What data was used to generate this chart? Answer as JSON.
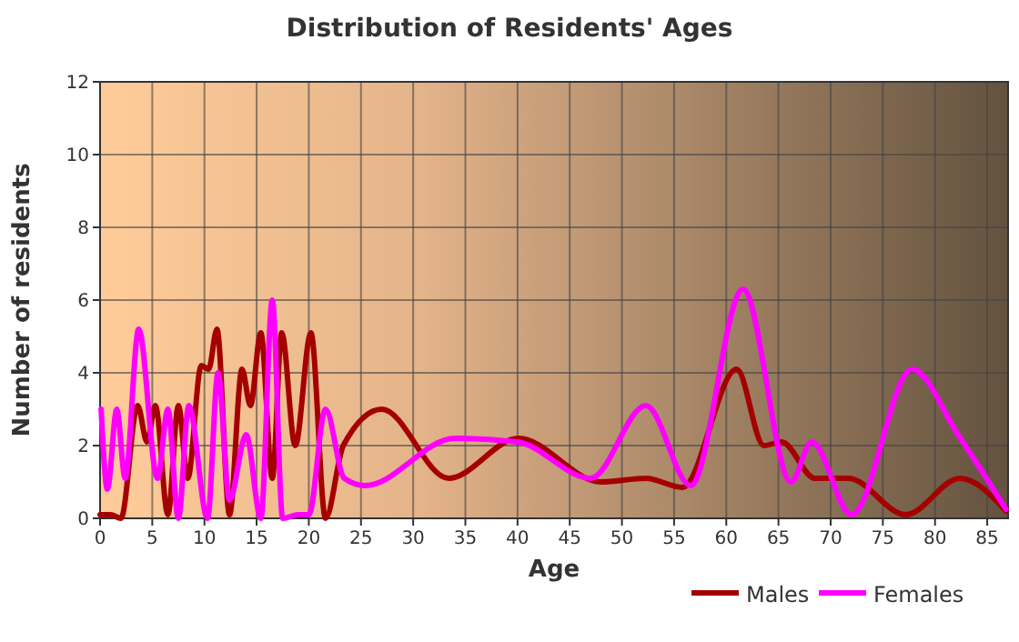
{
  "chart_data": {
    "type": "line",
    "title": "Distribution of Residents' Ages",
    "xlabel": "Age",
    "ylabel": "Number of residents",
    "xlim": [
      0,
      87
    ],
    "xticks": [
      0,
      5,
      10,
      15,
      20,
      25,
      30,
      35,
      40,
      45,
      50,
      55,
      60,
      65,
      70,
      75,
      80,
      85
    ],
    "ylim": [
      0,
      12
    ],
    "yticks": [
      0,
      2,
      4,
      6,
      8,
      10,
      12
    ],
    "grid": true,
    "legend": "bottom right",
    "marker": "none",
    "line_style": "solid",
    "series": [
      {
        "name": "Males",
        "color": "#a50000",
        "x": [
          0,
          1,
          2,
          3.6,
          4.5,
          5.3,
          6.5,
          7.5,
          8.4,
          9.7,
          10.4,
          11.2,
          12.4,
          13.6,
          14.4,
          15.4,
          16.5,
          17.4,
          18.7,
          20.2,
          21.6,
          23.3,
          27,
          33.4,
          40.1,
          48,
          52.3,
          55.8,
          61,
          63.6,
          65.3,
          68.5,
          71.7,
          77.2,
          82.4,
          86.8
        ],
        "values": [
          0.1,
          0.1,
          0,
          3.1,
          2.1,
          3.1,
          0.1,
          3.1,
          1.1,
          4.2,
          4.1,
          5.2,
          0.1,
          4.1,
          3.1,
          5.1,
          1.1,
          5.1,
          2,
          5.1,
          0,
          2,
          3,
          1.1,
          2.2,
          1,
          1.1,
          0.85,
          4.1,
          2,
          2.1,
          1.1,
          1.1,
          0.1,
          1.1,
          0.2
        ]
      },
      {
        "name": "Females",
        "color": "#ff00ff",
        "x": [
          0.1,
          0.7,
          1.6,
          2.4,
          3.7,
          5.5,
          6.5,
          7.5,
          8.5,
          10.3,
          11.3,
          12.4,
          14,
          15.4,
          16.5,
          17.5,
          19,
          20,
          21.6,
          23.4,
          25.4,
          34,
          40,
          47,
          52.3,
          56.6,
          61.6,
          66.2,
          68.2,
          72,
          77.8,
          82.2,
          86.8
        ],
        "values": [
          3,
          0.8,
          3,
          1.1,
          5.2,
          1.1,
          3,
          0,
          3.1,
          0,
          4,
          0.5,
          2.3,
          0,
          6,
          0,
          0.1,
          0.1,
          3,
          1.1,
          0.9,
          2.2,
          2.1,
          1.1,
          3.1,
          0.9,
          6.3,
          1,
          2.1,
          0.1,
          4.1,
          2.3,
          0.25
        ]
      }
    ]
  }
}
